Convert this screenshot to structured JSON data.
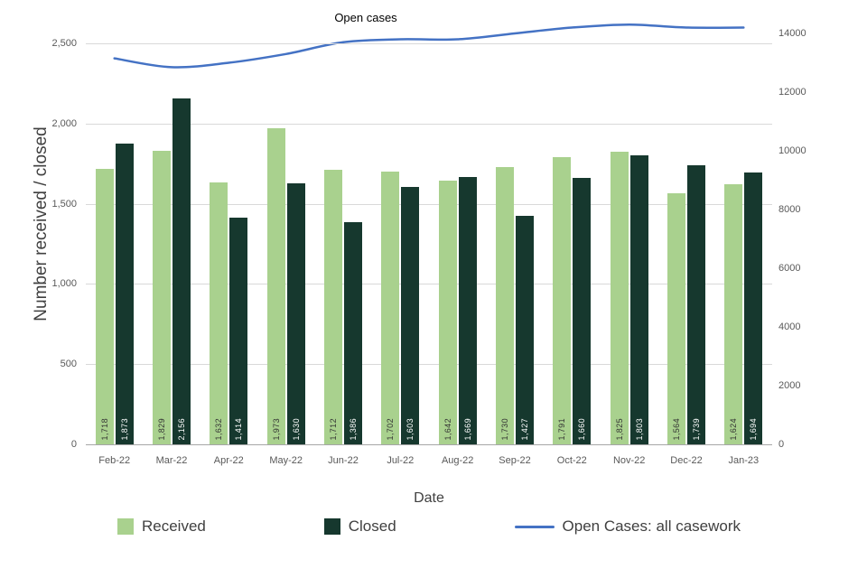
{
  "title": "Open cases",
  "chart_data": {
    "type": "combo-bar-line",
    "categories": [
      "Feb-22",
      "Mar-22",
      "Apr-22",
      "May-22",
      "Jun-22",
      "Jul-22",
      "Aug-22",
      "Sep-22",
      "Oct-22",
      "Nov-22",
      "Dec-22",
      "Jan-23"
    ],
    "series": [
      {
        "name": "Received",
        "type": "bar",
        "axis": "left",
        "color": "#a9d18e",
        "label_color": "#333333",
        "values": [
          1718,
          1829,
          1632,
          1973,
          1712,
          1702,
          1642,
          1730,
          1791,
          1825,
          1564,
          1624
        ]
      },
      {
        "name": "Closed",
        "type": "bar",
        "axis": "left",
        "color": "#16382e",
        "label_color": "#ffffff",
        "values": [
          1873,
          2156,
          1414,
          1630,
          1386,
          1603,
          1669,
          1427,
          1660,
          1803,
          1739,
          1694
        ]
      },
      {
        "name": "Open Cases: all casework",
        "type": "line",
        "axis": "right",
        "color": "#4472c4",
        "values": [
          13150,
          12850,
          13000,
          13300,
          13700,
          13800,
          13800,
          14000,
          14200,
          14300,
          14200,
          14200
        ]
      }
    ],
    "left_axis": {
      "title": "Number received / closed",
      "min": 0,
      "max": 2500,
      "tick_values": [
        0,
        500,
        1000,
        1500,
        2000,
        2500
      ],
      "tick_labels": [
        "0",
        "500",
        "1,000",
        "1,500",
        "2,000",
        "2,500"
      ]
    },
    "right_axis": {
      "min": 0,
      "max": 14000,
      "tick_values": [
        0,
        2000,
        4000,
        6000,
        8000,
        10000,
        12000,
        14000
      ],
      "tick_labels": [
        "0",
        "2000",
        "4000",
        "6000",
        "8000",
        "10000",
        "12000",
        "14000"
      ]
    },
    "xlabel": "Date",
    "grid": true,
    "legend_position": "bottom",
    "legend": [
      "Received",
      "Closed",
      "Open Cases: all casework"
    ]
  }
}
